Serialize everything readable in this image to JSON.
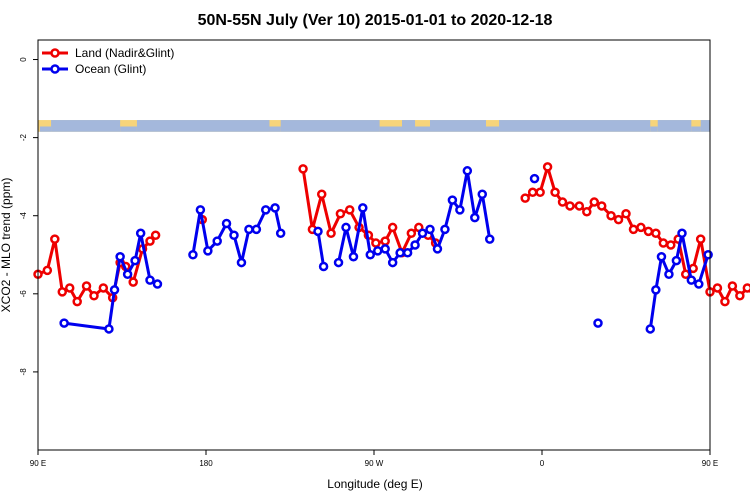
{
  "chart_data": {
    "type": "line",
    "title": "50N-55N July (Ver 10)   2015-01-01 to 2020-12-18",
    "xlabel": "Longitude (deg E)",
    "ylabel": "XCO2 - MLO trend (ppm)",
    "xlim": [
      90,
      450
    ],
    "ylim": [
      -10,
      0.5
    ],
    "x_ticks": [
      {
        "value": 90,
        "label": "90 E"
      },
      {
        "value": 180,
        "label": "180"
      },
      {
        "value": 270,
        "label": "90 W"
      },
      {
        "value": 360,
        "label": "0"
      },
      {
        "value": 450,
        "label": "90 E"
      },
      {
        "value": 540,
        "label": "180"
      }
    ],
    "y_ticks": [
      0,
      -2,
      -4,
      -6,
      -8
    ],
    "y_tick_labels": [
      "0",
      "-2",
      "-4",
      "-6",
      "-8"
    ],
    "grid": false,
    "legend_position": "top-left",
    "land_sea_strip": {
      "y_range": [
        -1.55,
        -1.85
      ],
      "land_color": "#f7d47a",
      "ocean_color": "#a4b8dc"
    },
    "series": [
      {
        "name": "Land (Nadir&Glint)",
        "color": "#ee0000",
        "points": [
          [
            90,
            -5.5
          ],
          [
            95,
            -5.4
          ],
          [
            99,
            -4.6
          ],
          [
            103,
            -5.95
          ],
          [
            107,
            -5.85
          ],
          [
            111,
            -6.2
          ],
          [
            116,
            -5.8
          ],
          [
            120,
            -6.05
          ],
          [
            125,
            -5.85
          ],
          [
            130,
            -6.1
          ],
          [
            134,
            -5.2
          ],
          [
            137,
            -5.3
          ],
          [
            141,
            -5.7
          ],
          [
            146,
            -4.85
          ],
          [
            150,
            -4.65
          ],
          [
            153,
            -4.5
          ],
          [
            null,
            null
          ],
          [
            178,
            -4.1
          ],
          [
            null,
            null
          ],
          [
            232,
            -2.8
          ],
          [
            237,
            -4.35
          ],
          [
            242,
            -3.45
          ],
          [
            247,
            -4.45
          ],
          [
            252,
            -3.95
          ],
          [
            257,
            -3.85
          ],
          [
            262,
            -4.3
          ],
          [
            267,
            -4.5
          ],
          [
            271,
            -4.7
          ],
          [
            276,
            -4.65
          ],
          [
            280,
            -4.3
          ],
          [
            285,
            -4.95
          ],
          [
            290,
            -4.45
          ],
          [
            294,
            -4.3
          ],
          [
            299,
            -4.5
          ],
          [
            303,
            -4.7
          ],
          [
            null,
            null
          ],
          [
            351,
            -3.55
          ],
          [
            355,
            -3.4
          ],
          [
            359,
            -3.4
          ],
          [
            363,
            -2.75
          ],
          [
            367,
            -3.4
          ],
          [
            371,
            -3.65
          ],
          [
            375,
            -3.75
          ],
          [
            380,
            -3.75
          ],
          [
            384,
            -3.9
          ],
          [
            388,
            -3.65
          ],
          [
            392,
            -3.75
          ],
          [
            397,
            -4.0
          ],
          [
            401,
            -4.1
          ],
          [
            405,
            -3.95
          ],
          [
            409,
            -4.35
          ],
          [
            413,
            -4.3
          ],
          [
            417,
            -4.4
          ],
          [
            421,
            -4.45
          ],
          [
            425,
            -4.7
          ],
          [
            429,
            -4.75
          ],
          [
            433,
            -4.6
          ],
          [
            437,
            -5.5
          ],
          [
            441,
            -5.35
          ],
          [
            445,
            -4.6
          ],
          [
            450,
            -5.95
          ],
          [
            454,
            -5.85
          ],
          [
            458,
            -6.2
          ],
          [
            462,
            -5.8
          ],
          [
            466,
            -6.05
          ],
          [
            470,
            -5.85
          ],
          [
            475,
            -6.1
          ],
          [
            479,
            -5.2
          ],
          [
            null,
            null
          ],
          [
            488,
            -4.65
          ]
        ]
      },
      {
        "name": "Ocean (Glint)",
        "color": "#0000ee",
        "points": [
          [
            104,
            -6.75
          ],
          [
            128,
            -6.9
          ],
          [
            131,
            -5.9
          ],
          [
            134,
            -5.05
          ],
          [
            138,
            -5.5
          ],
          [
            142,
            -5.15
          ],
          [
            145,
            -4.45
          ],
          [
            150,
            -5.65
          ],
          [
            154,
            -5.75
          ],
          [
            null,
            null
          ],
          [
            173,
            -5.0
          ],
          [
            177,
            -3.85
          ],
          [
            181,
            -4.9
          ],
          [
            186,
            -4.65
          ],
          [
            191,
            -4.2
          ],
          [
            195,
            -4.5
          ],
          [
            199,
            -5.2
          ],
          [
            203,
            -4.35
          ],
          [
            207,
            -4.35
          ],
          [
            212,
            -3.85
          ],
          [
            217,
            -3.8
          ],
          [
            220,
            -4.45
          ],
          [
            null,
            null
          ],
          [
            240,
            -4.4
          ],
          [
            243,
            -5.3
          ],
          [
            null,
            null
          ],
          [
            251,
            -5.2
          ],
          [
            255,
            -4.3
          ],
          [
            259,
            -5.05
          ],
          [
            264,
            -3.8
          ],
          [
            268,
            -5.0
          ],
          [
            272,
            -4.9
          ],
          [
            276,
            -4.85
          ],
          [
            280,
            -5.2
          ],
          [
            284,
            -4.95
          ],
          [
            288,
            -4.95
          ],
          [
            292,
            -4.75
          ],
          [
            296,
            -4.45
          ],
          [
            300,
            -4.35
          ],
          [
            304,
            -4.85
          ],
          [
            308,
            -4.35
          ],
          [
            312,
            -3.6
          ],
          [
            316,
            -3.85
          ],
          [
            320,
            -2.85
          ],
          [
            324,
            -4.05
          ],
          [
            328,
            -3.45
          ],
          [
            332,
            -4.6
          ],
          [
            null,
            null
          ],
          [
            356,
            -3.05
          ],
          [
            null,
            null
          ],
          [
            390,
            -6.75
          ],
          [
            null,
            null
          ],
          [
            418,
            -6.9
          ],
          [
            421,
            -5.9
          ],
          [
            424,
            -5.05
          ],
          [
            428,
            -5.5
          ],
          [
            432,
            -5.15
          ],
          [
            435,
            -4.45
          ],
          [
            440,
            -5.65
          ],
          [
            444,
            -5.75
          ],
          [
            449,
            -5.0
          ]
        ]
      }
    ]
  }
}
